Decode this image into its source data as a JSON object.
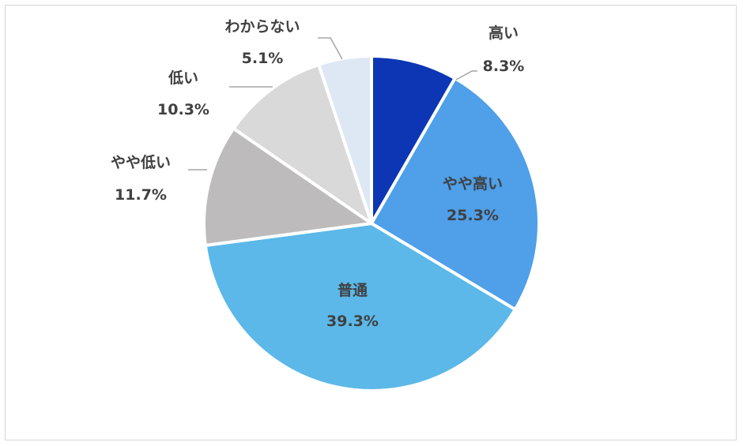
{
  "chart_data": {
    "type": "pie",
    "title": "",
    "categories": [
      "高い",
      "やや高い",
      "普通",
      "やや低い",
      "低い",
      "わからない"
    ],
    "values": [
      8.3,
      25.3,
      39.3,
      11.7,
      10.3,
      5.1
    ],
    "value_labels": [
      "8.3%",
      "25.3%",
      "39.3%",
      "11.7%",
      "10.3%",
      "5.1%"
    ],
    "colors": [
      "#0c36b4",
      "#4f9fe9",
      "#5bb8e8",
      "#bdbbbb",
      "#d9d9d9",
      "#dde8f4"
    ],
    "legend": "none",
    "start_angle_deg": 0,
    "direction": "clockwise"
  }
}
